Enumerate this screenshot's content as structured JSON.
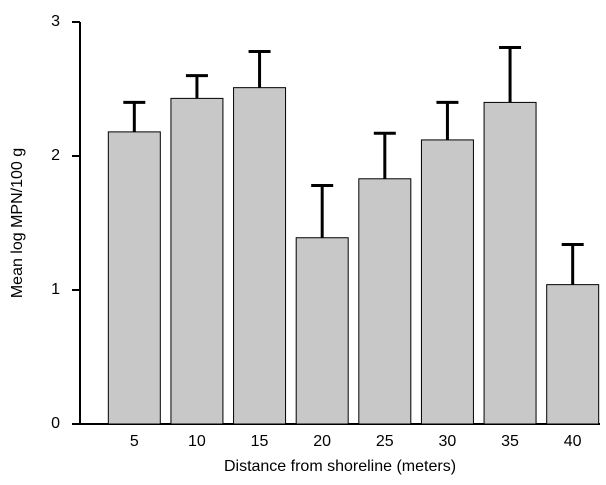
{
  "chart_data": {
    "type": "bar",
    "x_label": "Distance from shoreline (meters)",
    "y_label": "Mean log MPN/100 g",
    "categories": [
      "5",
      "10",
      "15",
      "20",
      "25",
      "30",
      "35",
      "40"
    ],
    "values": [
      2.18,
      2.43,
      2.51,
      1.39,
      1.83,
      2.12,
      2.4,
      1.04
    ],
    "errors": [
      0.22,
      0.17,
      0.27,
      0.39,
      0.34,
      0.28,
      0.41,
      0.3
    ],
    "color": "#c8c8c8",
    "ylim": [
      0,
      3
    ],
    "yticks": [
      0,
      1,
      2,
      3
    ]
  }
}
